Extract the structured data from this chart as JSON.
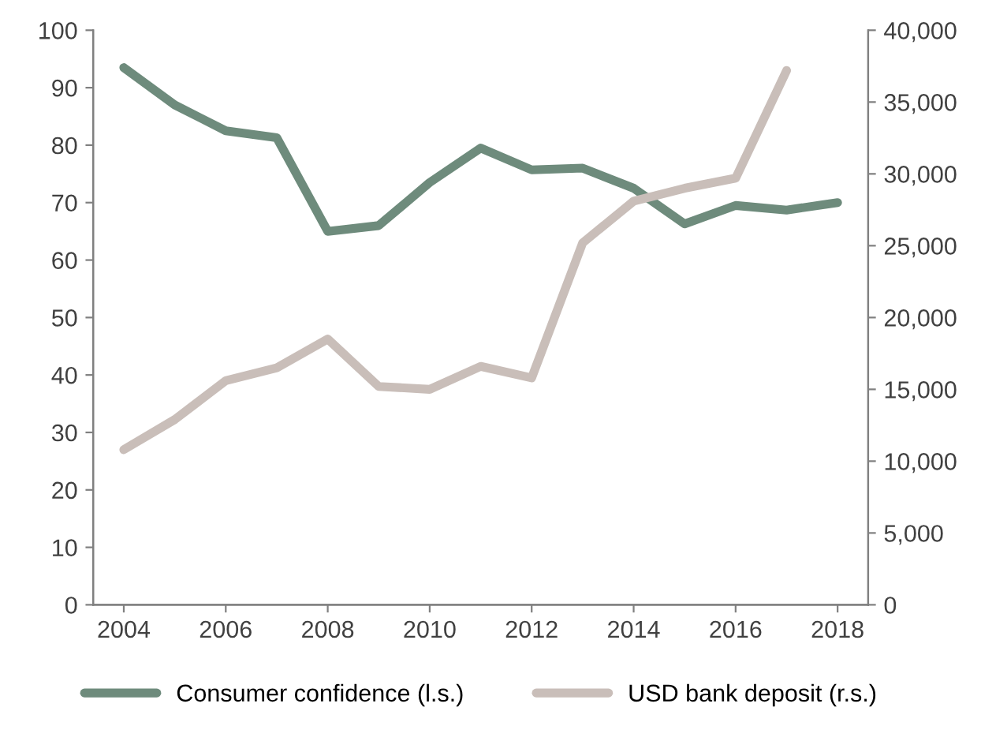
{
  "chart_data": {
    "type": "line",
    "x": [
      2004,
      2005,
      2006,
      2007,
      2008,
      2009,
      2010,
      2011,
      2012,
      2013,
      2014,
      2015,
      2016,
      2017,
      2018
    ],
    "series": [
      {
        "name": "Consumer confidence (l.s.)",
        "color": "#6e8b7c",
        "values": [
          93.5,
          87,
          82.5,
          81.3,
          65,
          66,
          73.5,
          79.5,
          75.7,
          76,
          72.5,
          66.3,
          69.5,
          68.7,
          70
        ]
      },
      {
        "name": "USD bank deposit (r.s.)",
        "color": "#c9beb9",
        "axis": "y2",
        "values": [
          10800,
          12900,
          15600,
          16500,
          18500,
          15200,
          15000,
          16600,
          15800,
          25200,
          28100,
          29000,
          29700,
          37200,
          null
        ]
      }
    ],
    "xlim": [
      2003.4,
      2018.6
    ],
    "xticks": [
      2004,
      2006,
      2008,
      2010,
      2012,
      2014,
      2016,
      2018
    ],
    "ylim": [
      0,
      100
    ],
    "yticks": [
      0,
      10,
      20,
      30,
      40,
      50,
      60,
      70,
      80,
      90,
      100
    ],
    "y2lim": [
      0,
      40000
    ],
    "y2ticks": [
      {
        "value": 0,
        "label": "0"
      },
      {
        "value": 5000,
        "label": "5,000"
      },
      {
        "value": 10000,
        "label": "10,000"
      },
      {
        "value": 15000,
        "label": "15,000"
      },
      {
        "value": 20000,
        "label": "20,000"
      },
      {
        "value": 25000,
        "label": "25,000"
      },
      {
        "value": 30000,
        "label": "30,000"
      },
      {
        "value": 35000,
        "label": "35,000"
      },
      {
        "value": 40000,
        "label": "40,000"
      }
    ],
    "grid": false,
    "legend": "bottom",
    "marker": "none",
    "line_style": "solid"
  }
}
